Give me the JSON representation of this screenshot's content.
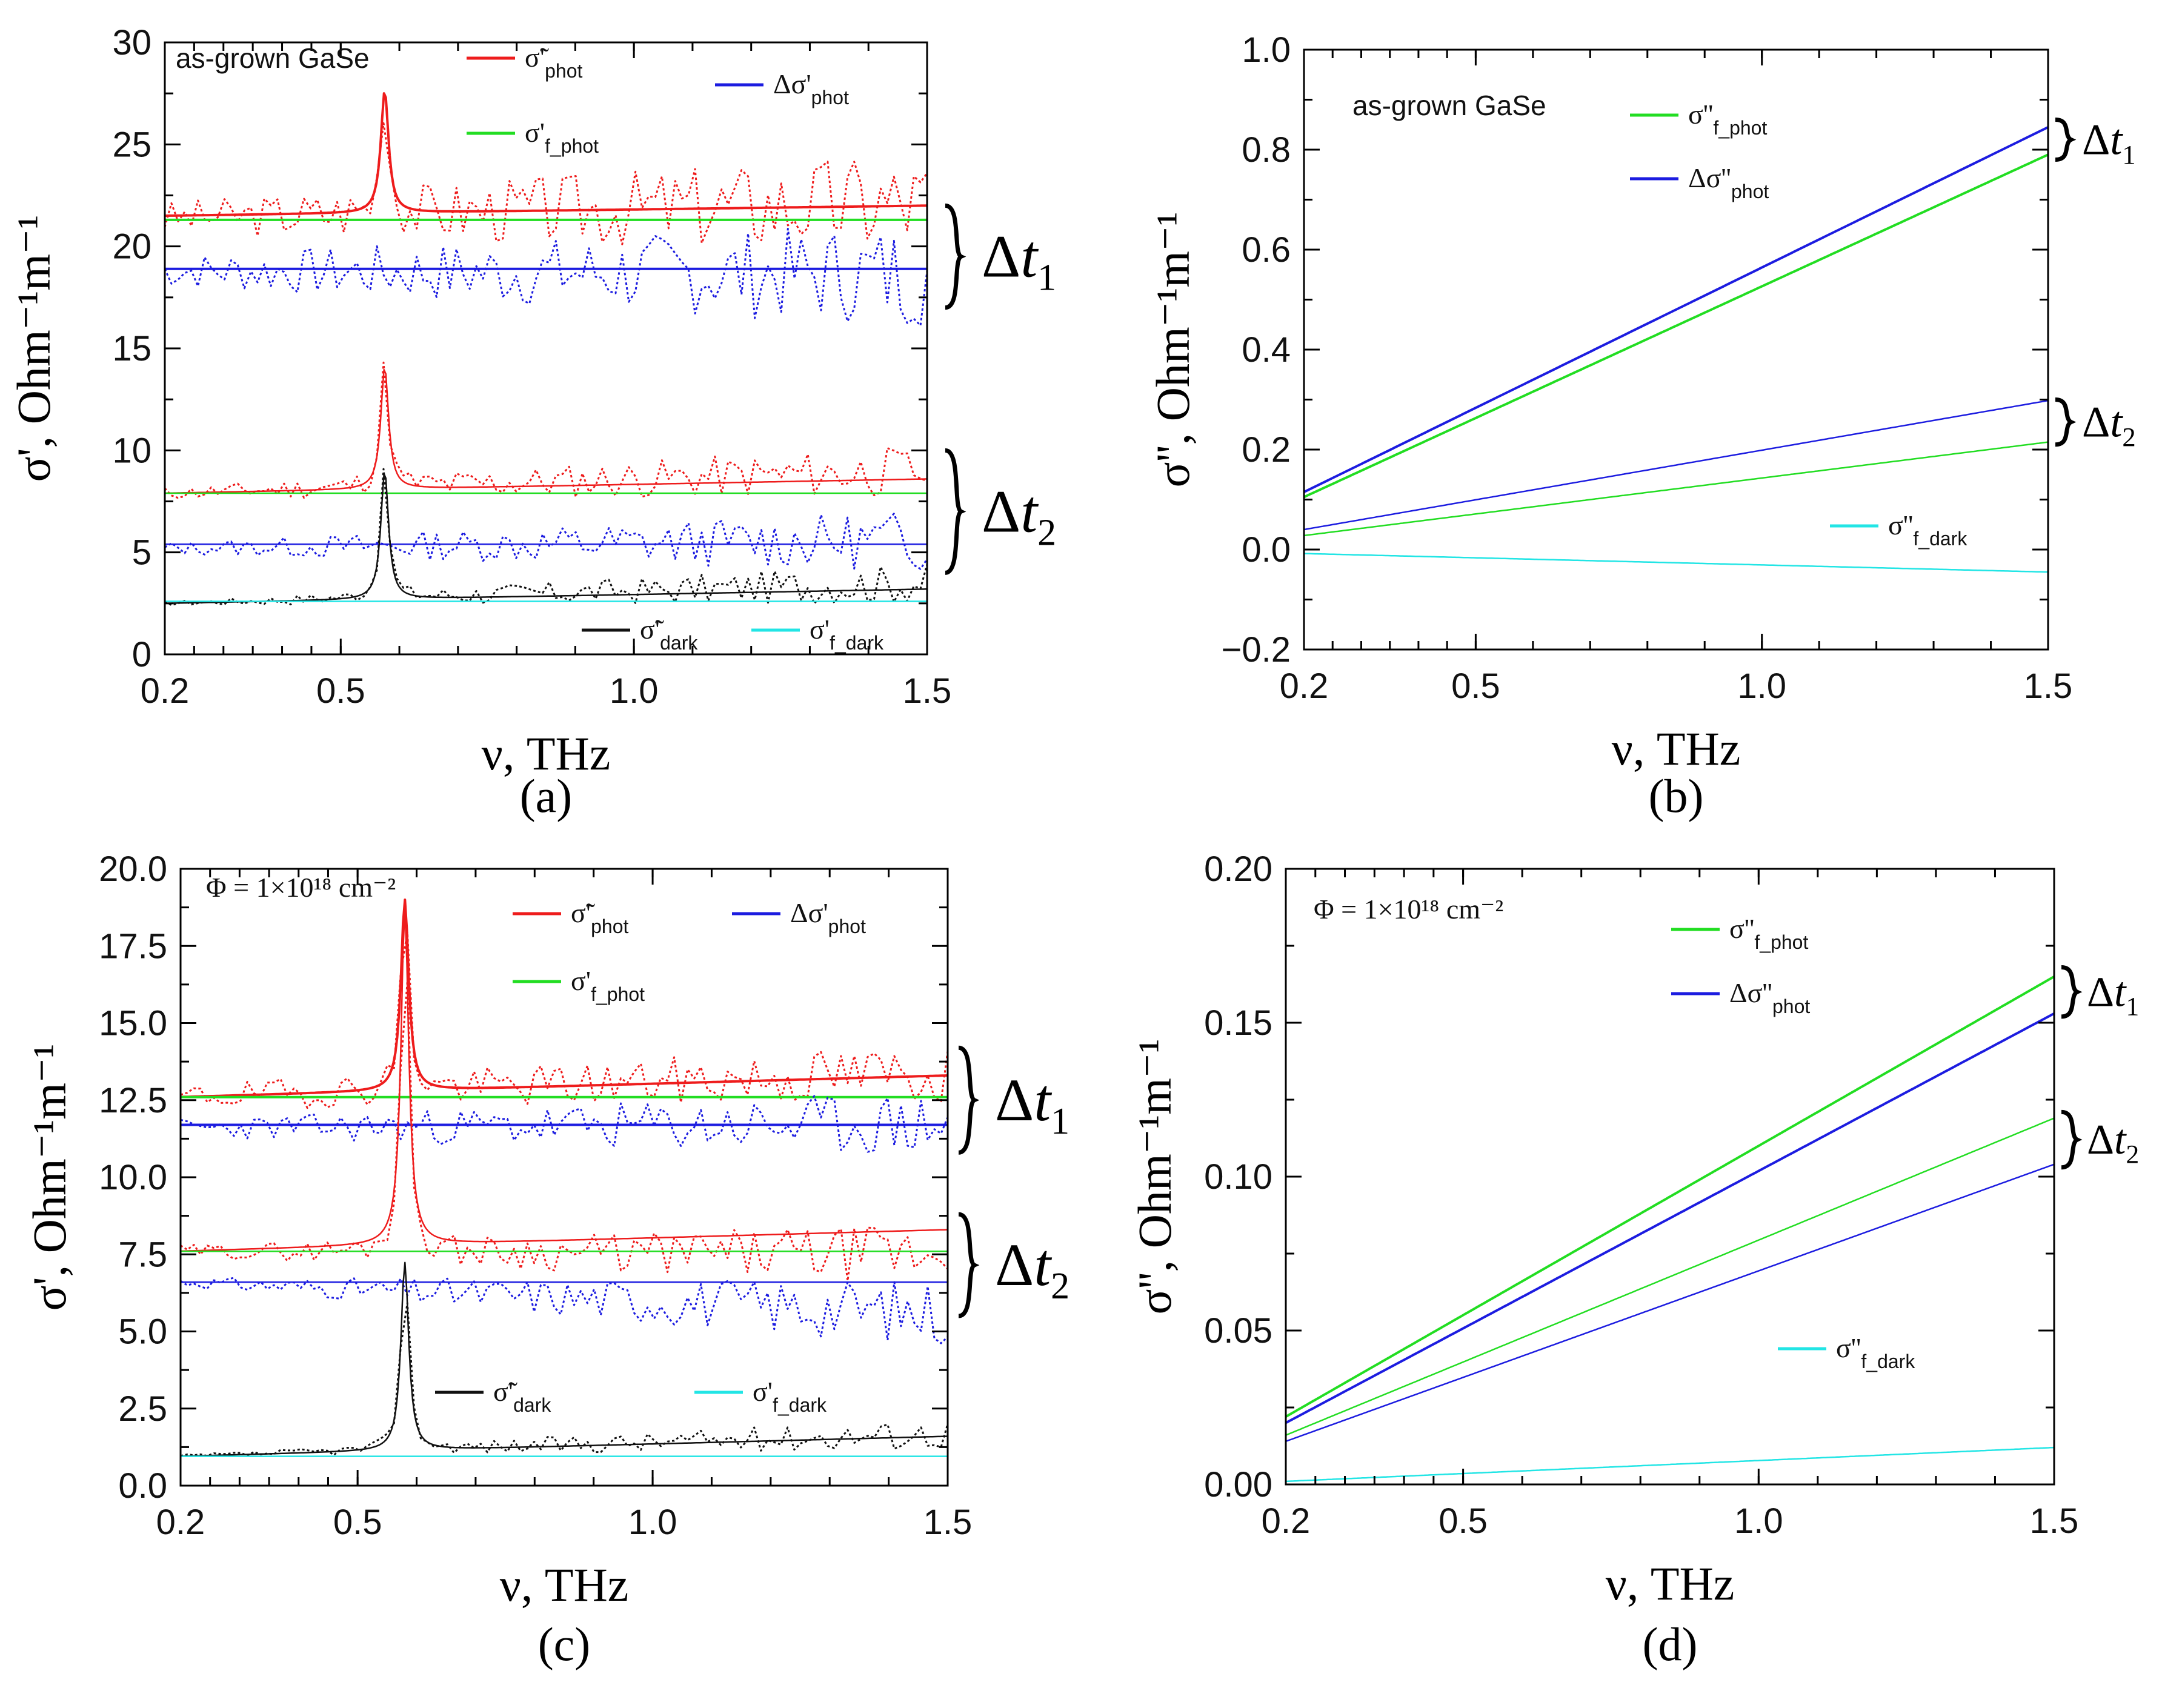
{
  "figure": {
    "panels": [
      "a",
      "b",
      "c",
      "d"
    ]
  },
  "colors": {
    "red": "#ee1c1c",
    "green": "#22dd22",
    "blue": "#1c1ce0",
    "black": "#111111",
    "cyan": "#22e5e5"
  },
  "chart_data": [
    {
      "id": "a",
      "type": "line",
      "panel_label": "(a)",
      "title": "",
      "annotation": "as-grown GaSe",
      "xlabel": "ν, THz",
      "ylabel": "σ', Ohm⁻¹m⁻¹",
      "xlim": [
        0.2,
        1.5
      ],
      "ylim": [
        0,
        30
      ],
      "xticks": [
        0.2,
        0.5,
        1.0,
        1.5
      ],
      "xtick_labels": [
        "0.2",
        "0.5",
        "1.0",
        "1.5"
      ],
      "yticks": [
        0,
        5,
        10,
        15,
        20,
        25,
        30
      ],
      "ytick_labels": [
        "0",
        "5",
        "10",
        "15",
        "20",
        "25",
        "30"
      ],
      "grid": false,
      "legend": [
        {
          "label": "σ̃'",
          "sub": "phot",
          "color": "#ee1c1c"
        },
        {
          "label": "Δσ'",
          "sub": "phot",
          "color": "#1c1ce0"
        },
        {
          "label": "σ'",
          "sub": "f_phot",
          "color": "#22dd22"
        },
        {
          "label": "σ̃'",
          "sub": "dark",
          "color": "#111111"
        },
        {
          "label": "σ'",
          "sub": "f_dark",
          "color": "#22e5e5"
        }
      ],
      "braces": [
        {
          "label": "Δt",
          "sub": "1",
          "y_range": [
            17,
            22
          ]
        },
        {
          "label": "Δt",
          "sub": "2",
          "y_range": [
            4,
            10
          ]
        }
      ],
      "series": [
        {
          "color": "#ee1c1c",
          "style": "solid",
          "width": 4,
          "kind": "lorentz",
          "base": [
            21.5,
            22.0
          ],
          "peak": 6,
          "x0": 0.575,
          "w": 0.008,
          "group": "Δt1"
        },
        {
          "color": "#ee1c1c",
          "style": "dotted",
          "kind": "noisy",
          "base": [
            21.4,
            22.2
          ],
          "amp": [
            0.8,
            2.6
          ],
          "seed": 3,
          "peak": 6,
          "x0": 0.575,
          "w": 0.008,
          "group": "Δt1"
        },
        {
          "color": "#22dd22",
          "style": "solid",
          "width": 4,
          "kind": "linear",
          "base": [
            21.3,
            21.3
          ],
          "group": "Δt1"
        },
        {
          "color": "#1c1ce0",
          "style": "solid",
          "width": 4,
          "kind": "linear",
          "base": [
            18.9,
            18.9
          ],
          "group": "Δt1"
        },
        {
          "color": "#1c1ce0",
          "style": "dotted",
          "kind": "noisy",
          "base": [
            18.8,
            18.6
          ],
          "amp": [
            0.8,
            2.6
          ],
          "seed": 7,
          "group": "Δt1"
        },
        {
          "color": "#ee1c1c",
          "style": "solid",
          "width": 2.5,
          "kind": "lorentz",
          "base": [
            7.9,
            8.6
          ],
          "peak": 6,
          "x0": 0.575,
          "w": 0.008,
          "group": "Δt2"
        },
        {
          "color": "#ee1c1c",
          "style": "dotted",
          "kind": "noisy",
          "base": [
            7.9,
            9.0
          ],
          "amp": [
            0.3,
            1.3
          ],
          "seed": 11,
          "peak": 6,
          "x0": 0.575,
          "w": 0.008,
          "group": "Δt2"
        },
        {
          "color": "#22dd22",
          "style": "solid",
          "width": 2.5,
          "kind": "linear",
          "base": [
            7.9,
            7.9
          ],
          "group": "Δt2"
        },
        {
          "color": "#1c1ce0",
          "style": "solid",
          "width": 2.5,
          "kind": "linear",
          "base": [
            5.4,
            5.4
          ],
          "group": "Δt2"
        },
        {
          "color": "#1c1ce0",
          "style": "dotted",
          "kind": "noisy",
          "base": [
            5.2,
            5.6
          ],
          "amp": [
            0.3,
            1.5
          ],
          "seed": 13,
          "group": "Δt2"
        },
        {
          "color": "#111111",
          "style": "solid",
          "width": 2.5,
          "kind": "lorentz",
          "base": [
            2.5,
            3.2
          ],
          "peak": 6.3,
          "x0": 0.575,
          "w": 0.008
        },
        {
          "color": "#111111",
          "style": "dotted",
          "kind": "noisy",
          "base": [
            2.5,
            3.5
          ],
          "amp": [
            0.1,
            1.0
          ],
          "seed": 17,
          "peak": 6.3,
          "x0": 0.575,
          "w": 0.008
        },
        {
          "color": "#22e5e5",
          "style": "solid",
          "width": 2.5,
          "kind": "linear",
          "base": [
            2.6,
            2.6
          ]
        }
      ]
    },
    {
      "id": "b",
      "type": "line",
      "panel_label": "(b)",
      "title": "",
      "annotation": "as-grown GaSe",
      "xlabel": "ν, THz",
      "ylabel": "σ'', Ohm⁻¹m⁻¹",
      "xlim": [
        0.2,
        1.5
      ],
      "ylim": [
        -0.2,
        1.0
      ],
      "xticks": [
        0.2,
        0.5,
        1.0,
        1.5
      ],
      "xtick_labels": [
        "0.2",
        "0.5",
        "1.0",
        "1.5"
      ],
      "yticks": [
        -0.2,
        0.0,
        0.2,
        0.4,
        0.6,
        0.8,
        1.0
      ],
      "ytick_labels": [
        "−0.2",
        "0.0",
        "0.2",
        "0.4",
        "0.6",
        "0.8",
        "1.0"
      ],
      "grid": false,
      "legend": [
        {
          "label": "σ''",
          "sub": "f_phot",
          "color": "#22dd22"
        },
        {
          "label": "Δσ''",
          "sub": "phot",
          "color": "#1c1ce0"
        },
        {
          "label": "σ''",
          "sub": "f_dark",
          "color": "#22e5e5"
        }
      ],
      "braces": [
        {
          "label": "Δt",
          "sub": "1",
          "y_range": [
            0.78,
            0.86
          ]
        },
        {
          "label": "Δt",
          "sub": "2",
          "y_range": [
            0.21,
            0.3
          ]
        }
      ],
      "series": [
        {
          "color": "#1c1ce0",
          "style": "solid",
          "width": 4,
          "kind": "linear",
          "base": [
            0.115,
            0.845
          ],
          "group": "Δt1"
        },
        {
          "color": "#22dd22",
          "style": "solid",
          "width": 4,
          "kind": "linear",
          "base": [
            0.105,
            0.79
          ],
          "group": "Δt1"
        },
        {
          "color": "#1c1ce0",
          "style": "solid",
          "width": 2.5,
          "kind": "linear",
          "base": [
            0.04,
            0.298
          ],
          "group": "Δt2"
        },
        {
          "color": "#22dd22",
          "style": "solid",
          "width": 2.5,
          "kind": "linear",
          "base": [
            0.028,
            0.215
          ],
          "group": "Δt2"
        },
        {
          "color": "#22e5e5",
          "style": "solid",
          "width": 2.5,
          "kind": "linear",
          "base": [
            -0.008,
            -0.045
          ]
        }
      ]
    },
    {
      "id": "c",
      "type": "line",
      "panel_label": "(c)",
      "title": "",
      "annotation": "Φ = 1×10¹⁸ cm⁻²",
      "xlabel": "ν, THz",
      "ylabel": "σ', Ohm⁻¹m⁻¹",
      "xlim": [
        0.2,
        1.5
      ],
      "ylim": [
        0,
        20
      ],
      "xticks": [
        0.2,
        0.5,
        1.0,
        1.5
      ],
      "xtick_labels": [
        "0.2",
        "0.5",
        "1.0",
        "1.5"
      ],
      "yticks": [
        0,
        2.5,
        5,
        7.5,
        10,
        12.5,
        15,
        17.5,
        20
      ],
      "ytick_labels": [
        "0.0",
        "2.5",
        "5.0",
        "7.5",
        "10.0",
        "12.5",
        "15.0",
        "17.5",
        "20.0"
      ],
      "grid": false,
      "legend": [
        {
          "label": "σ̃'",
          "sub": "phot",
          "color": "#ee1c1c"
        },
        {
          "label": "Δσ'",
          "sub": "phot",
          "color": "#1c1ce0"
        },
        {
          "label": "σ'",
          "sub": "f_phot",
          "color": "#22dd22"
        },
        {
          "label": "σ̃'",
          "sub": "dark",
          "color": "#111111"
        },
        {
          "label": "σ'",
          "sub": "f_dark",
          "color": "#22e5e5"
        }
      ],
      "braces": [
        {
          "label": "Δt",
          "sub": "1",
          "y_range": [
            10.8,
            14.2
          ]
        },
        {
          "label": "Δt",
          "sub": "2",
          "y_range": [
            5.5,
            8.8
          ]
        }
      ],
      "series": [
        {
          "color": "#ee1c1c",
          "style": "solid",
          "width": 4,
          "kind": "lorentz",
          "base": [
            12.6,
            13.3
          ],
          "peak": 6.2,
          "x0": 0.58,
          "w": 0.008,
          "group": "Δt1"
        },
        {
          "color": "#ee1c1c",
          "style": "dotted",
          "kind": "noisy",
          "base": [
            12.6,
            13.4
          ],
          "amp": [
            0.4,
            1.0
          ],
          "seed": 19,
          "peak": 6.2,
          "x0": 0.58,
          "w": 0.008,
          "group": "Δt1"
        },
        {
          "color": "#22dd22",
          "style": "solid",
          "width": 4,
          "kind": "linear",
          "base": [
            12.6,
            12.6
          ],
          "group": "Δt1"
        },
        {
          "color": "#1c1ce0",
          "style": "solid",
          "width": 4,
          "kind": "linear",
          "base": [
            11.7,
            11.7
          ],
          "group": "Δt1"
        },
        {
          "color": "#1c1ce0",
          "style": "dotted",
          "kind": "noisy",
          "base": [
            11.6,
            11.7
          ],
          "amp": [
            0.3,
            1.1
          ],
          "seed": 23,
          "group": "Δt1"
        },
        {
          "color": "#ee1c1c",
          "style": "solid",
          "width": 2.5,
          "kind": "lorentz",
          "base": [
            7.6,
            8.3
          ],
          "peak": 10.9,
          "x0": 0.58,
          "w": 0.008,
          "group": "Δt2"
        },
        {
          "color": "#ee1c1c",
          "style": "dotted",
          "kind": "noisy",
          "base": [
            7.6,
            7.5
          ],
          "amp": [
            0.2,
            1.0
          ],
          "seed": 29,
          "peak": 10.9,
          "x0": 0.58,
          "w": 0.008,
          "group": "Δt2"
        },
        {
          "color": "#22dd22",
          "style": "solid",
          "width": 2.5,
          "kind": "linear",
          "base": [
            7.6,
            7.6
          ],
          "group": "Δt2"
        },
        {
          "color": "#1c1ce0",
          "style": "solid",
          "width": 2.5,
          "kind": "linear",
          "base": [
            6.6,
            6.6
          ],
          "group": "Δt2"
        },
        {
          "color": "#1c1ce0",
          "style": "dotted",
          "kind": "noisy",
          "base": [
            6.6,
            5.6
          ],
          "amp": [
            0.15,
            1.1
          ],
          "seed": 31,
          "group": "Δt2"
        },
        {
          "color": "#111111",
          "style": "solid",
          "width": 2.5,
          "kind": "lorentz",
          "base": [
            0.95,
            1.6
          ],
          "peak": 6.1,
          "x0": 0.58,
          "w": 0.008
        },
        {
          "color": "#111111",
          "style": "dotted",
          "kind": "noisy",
          "base": [
            0.95,
            1.7
          ],
          "amp": [
            0.05,
            0.5
          ],
          "seed": 37,
          "peak": 6.1,
          "x0": 0.58,
          "w": 0.008
        },
        {
          "color": "#22e5e5",
          "style": "solid",
          "width": 2.5,
          "kind": "linear",
          "base": [
            0.95,
            0.95
          ]
        }
      ]
    },
    {
      "id": "d",
      "type": "line",
      "panel_label": "(d)",
      "title": "",
      "annotation": "Φ = 1×10¹⁸ cm⁻²",
      "xlabel": "ν, THz",
      "ylabel": "σ'', Ohm⁻¹m⁻¹",
      "xlim": [
        0.2,
        1.5
      ],
      "ylim": [
        0,
        0.2
      ],
      "xticks": [
        0.2,
        0.5,
        1.0,
        1.5
      ],
      "xtick_labels": [
        "0.2",
        "0.5",
        "1.0",
        "1.5"
      ],
      "yticks": [
        0,
        0.05,
        0.1,
        0.15,
        0.2
      ],
      "ytick_labels": [
        "0.00",
        "0.05",
        "0.10",
        "0.15",
        "0.20"
      ],
      "grid": false,
      "legend": [
        {
          "label": "σ''",
          "sub": "f_phot",
          "color": "#22dd22"
        },
        {
          "label": "Δσ''",
          "sub": "phot",
          "color": "#1c1ce0"
        },
        {
          "label": "σ''",
          "sub": "f_dark",
          "color": "#22e5e5"
        }
      ],
      "braces": [
        {
          "label": "Δt",
          "sub": "1",
          "y_range": [
            0.152,
            0.168
          ]
        },
        {
          "label": "Δt",
          "sub": "2",
          "y_range": [
            0.103,
            0.121
          ]
        }
      ],
      "series": [
        {
          "color": "#22dd22",
          "style": "solid",
          "width": 4,
          "kind": "linear",
          "base": [
            0.022,
            0.165
          ],
          "group": "Δt1"
        },
        {
          "color": "#1c1ce0",
          "style": "solid",
          "width": 4,
          "kind": "linear",
          "base": [
            0.02,
            0.153
          ],
          "group": "Δt1"
        },
        {
          "color": "#22dd22",
          "style": "solid",
          "width": 2.5,
          "kind": "linear",
          "base": [
            0.016,
            0.119
          ],
          "group": "Δt2"
        },
        {
          "color": "#1c1ce0",
          "style": "solid",
          "width": 2.5,
          "kind": "linear",
          "base": [
            0.014,
            0.104
          ],
          "group": "Δt2"
        },
        {
          "color": "#22e5e5",
          "style": "solid",
          "width": 2.5,
          "kind": "linear",
          "base": [
            0.001,
            0.012
          ]
        }
      ]
    }
  ]
}
